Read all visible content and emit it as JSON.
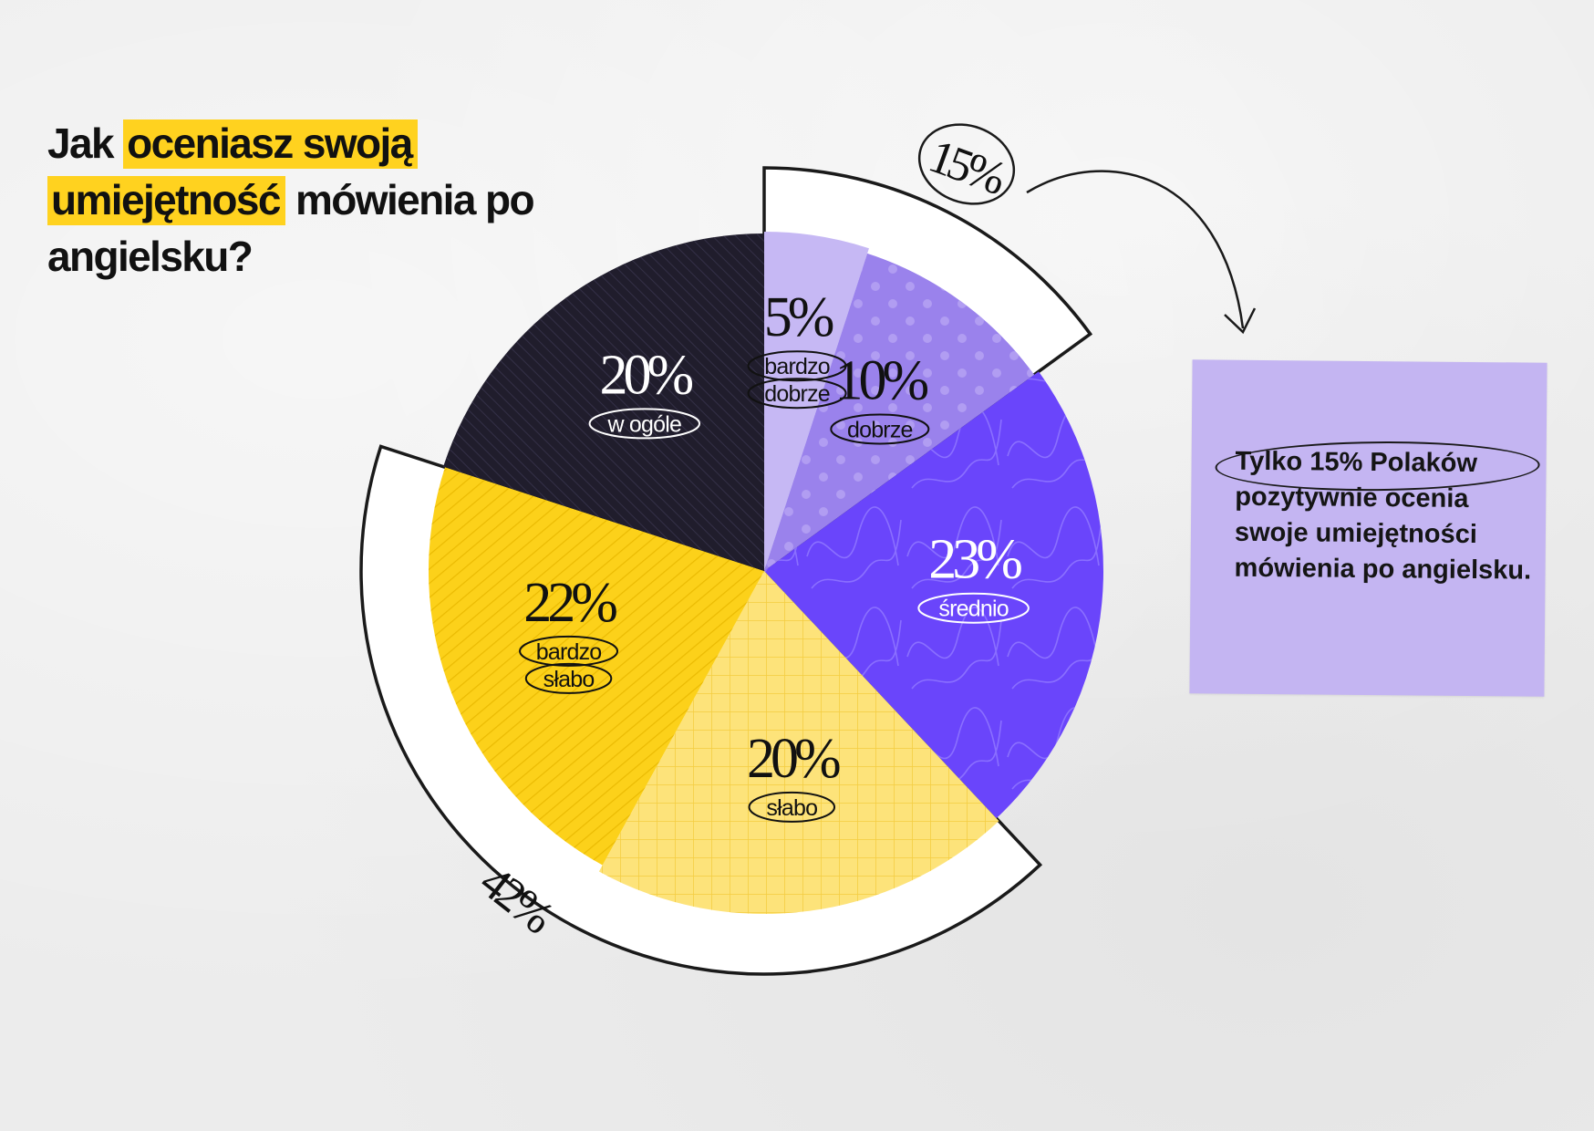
{
  "title": {
    "part1": "Jak ",
    "highlight1": "oceniasz swoją",
    "highlight2": "umiejętność",
    "part2": " mówienia po angielsku?"
  },
  "chart_data": {
    "type": "pie",
    "title": "Jak oceniasz swoją umiejętność mówienia po angielsku?",
    "unit": "%",
    "slices": [
      {
        "label": "bardzo dobrze",
        "label_lines": [
          "bardzo",
          "dobrze"
        ],
        "value": 5,
        "value_text": "5%",
        "color": "#c6b8f4"
      },
      {
        "label": "dobrze",
        "label_lines": [
          "dobrze"
        ],
        "value": 10,
        "value_text": "10%",
        "color": "#9a82ec"
      },
      {
        "label": "średnio",
        "label_lines": [
          "średnio"
        ],
        "value": 23,
        "value_text": "23%",
        "color": "#6a45fb"
      },
      {
        "label": "słabo",
        "label_lines": [
          "słabo"
        ],
        "value": 20,
        "value_text": "20%",
        "color": "#fde37a"
      },
      {
        "label": "bardzo słabo",
        "label_lines": [
          "bardzo",
          "słabo"
        ],
        "value": 22,
        "value_text": "22%",
        "color": "#fcd11a"
      },
      {
        "label": "w ogóle",
        "label_lines": [
          "w ogóle"
        ],
        "value": 20,
        "value_text": "20%",
        "color": "#201d2c"
      }
    ],
    "groups": [
      {
        "label": "15%",
        "value": 15,
        "slices": [
          "bardzo dobrze",
          "dobrze"
        ]
      },
      {
        "label": "42%",
        "value": 42,
        "slices": [
          "słabo",
          "bardzo słabo"
        ]
      }
    ]
  },
  "note": {
    "highlight": "Tylko 15% Polaków",
    "text": "pozytywnie ocenia swoje umiejętności mówienia po angielsku."
  }
}
